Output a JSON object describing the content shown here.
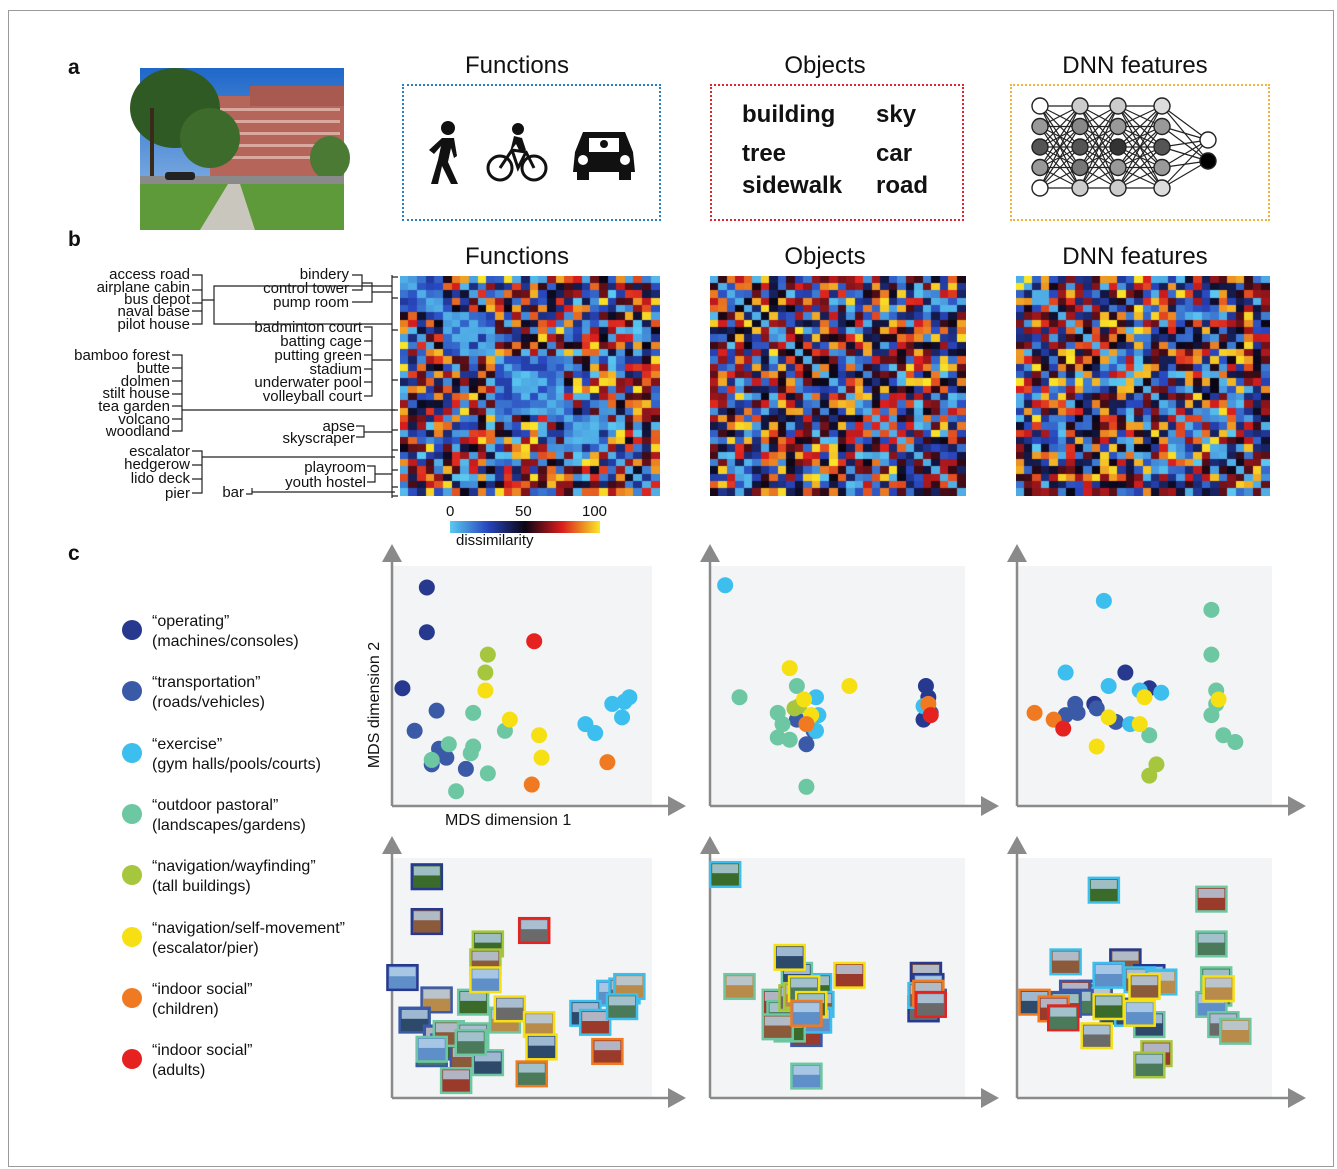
{
  "panel_labels": {
    "a": "a",
    "b": "b",
    "c": "c"
  },
  "columns": {
    "functions": "Functions",
    "objects": "Objects",
    "dnn": "DNN features"
  },
  "colors": {
    "functions_box": "#2a7fbf",
    "objects_box": "#e0262b",
    "dnn_box": "#f0b43c"
  },
  "function_icons": [
    "walking-person-icon",
    "cyclist-icon",
    "car-icon"
  ],
  "object_words": [
    "building",
    "sky",
    "tree",
    "car",
    "sidewalk",
    "road"
  ],
  "dendrogram_left": [
    "access road",
    "airplane cabin",
    "bus depot",
    "naval base",
    "pilot house",
    "bamboo forest",
    "butte",
    "dolmen",
    "stilt house",
    "tea garden",
    "volcano",
    "woodland",
    "escalator",
    "hedgerow",
    "lido deck",
    "pier"
  ],
  "dendrogram_right": [
    "bindery",
    "control tower",
    "pump room",
    "badminton court",
    "batting cage",
    "putting green",
    "stadium",
    "underwater pool",
    "volleyball court",
    "apse",
    "skyscraper",
    "playroom",
    "youth hostel",
    "bar"
  ],
  "colorbar": {
    "ticks": [
      "0",
      "50",
      "100"
    ],
    "label": "dissimilarity"
  },
  "mds": {
    "xlabel": "MDS dimension 1",
    "ylabel": "MDS dimension 2"
  },
  "legend": [
    {
      "title": "“operating”",
      "sub": "(machines/consoles)",
      "color": "#27398f"
    },
    {
      "title": "“transportation”",
      "sub": "(roads/vehicles)",
      "color": "#3a5aa8"
    },
    {
      "title": "“exercise”",
      "sub": "(gym halls/pools/courts)",
      "color": "#3cbfee"
    },
    {
      "title": "“outdoor pastoral”",
      "sub": "(landscapes/gardens)",
      "color": "#6cc7a2"
    },
    {
      "title": "“navigation/wayfinding”",
      "sub": "(tall buildings)",
      "color": "#a6c63e"
    },
    {
      "title": "“navigation/self-movement”",
      "sub": "(escalator/pier)",
      "color": "#f6df12"
    },
    {
      "title": "“indoor social”",
      "sub": "(children)",
      "color": "#f07a22"
    },
    {
      "title": "“indoor social”",
      "sub": "(adults)",
      "color": "#e5221f"
    }
  ],
  "chart_data": [
    {
      "type": "scatter",
      "name": "Functions",
      "points": [
        [
          0.11,
          0.94,
          0
        ],
        [
          0.11,
          0.74,
          0
        ],
        [
          0.01,
          0.49,
          0
        ],
        [
          0.55,
          0.7,
          7
        ],
        [
          0.15,
          0.39,
          1
        ],
        [
          0.06,
          0.3,
          1
        ],
        [
          0.16,
          0.22,
          1
        ],
        [
          0.13,
          0.15,
          1
        ],
        [
          0.19,
          0.18,
          1
        ],
        [
          0.27,
          0.13,
          1
        ],
        [
          0.87,
          0.42,
          2
        ],
        [
          0.92,
          0.43,
          2
        ],
        [
          0.94,
          0.45,
          2
        ],
        [
          0.76,
          0.33,
          2
        ],
        [
          0.8,
          0.29,
          2
        ],
        [
          0.91,
          0.36,
          2
        ],
        [
          0.3,
          0.38,
          3
        ],
        [
          0.2,
          0.24,
          3
        ],
        [
          0.13,
          0.17,
          3
        ],
        [
          0.3,
          0.23,
          3
        ],
        [
          0.43,
          0.3,
          3
        ],
        [
          0.36,
          0.11,
          3
        ],
        [
          0.23,
          0.03,
          3
        ],
        [
          0.29,
          0.2,
          3
        ],
        [
          0.36,
          0.64,
          4
        ],
        [
          0.35,
          0.56,
          4
        ],
        [
          0.35,
          0.48,
          5
        ],
        [
          0.45,
          0.35,
          5
        ],
        [
          0.57,
          0.28,
          5
        ],
        [
          0.58,
          0.18,
          5
        ],
        [
          0.85,
          0.16,
          6
        ],
        [
          0.54,
          0.06,
          6
        ]
      ]
    },
    {
      "type": "scatter",
      "name": "Objects",
      "points": [
        [
          0.03,
          0.95,
          2
        ],
        [
          0.87,
          0.5,
          0
        ],
        [
          0.88,
          0.45,
          0
        ],
        [
          0.86,
          0.35,
          0
        ],
        [
          0.33,
          0.35,
          1
        ],
        [
          0.4,
          0.3,
          1
        ],
        [
          0.37,
          0.24,
          1
        ],
        [
          0.89,
          0.38,
          1
        ],
        [
          0.41,
          0.45,
          2
        ],
        [
          0.42,
          0.37,
          2
        ],
        [
          0.41,
          0.3,
          2
        ],
        [
          0.86,
          0.41,
          2
        ],
        [
          0.09,
          0.45,
          3
        ],
        [
          0.33,
          0.5,
          3
        ],
        [
          0.25,
          0.38,
          3
        ],
        [
          0.27,
          0.33,
          3
        ],
        [
          0.3,
          0.26,
          3
        ],
        [
          0.25,
          0.27,
          3
        ],
        [
          0.37,
          0.05,
          3
        ],
        [
          0.32,
          0.4,
          4
        ],
        [
          0.34,
          0.41,
          4
        ],
        [
          0.3,
          0.58,
          5
        ],
        [
          0.55,
          0.5,
          5
        ],
        [
          0.36,
          0.44,
          5
        ],
        [
          0.39,
          0.37,
          5
        ],
        [
          0.88,
          0.42,
          6
        ],
        [
          0.37,
          0.33,
          6
        ],
        [
          0.89,
          0.37,
          7
        ]
      ]
    },
    {
      "type": "scatter",
      "name": "DNN features",
      "points": [
        [
          0.33,
          0.88,
          2
        ],
        [
          0.42,
          0.56,
          0
        ],
        [
          0.52,
          0.49,
          0
        ],
        [
          0.29,
          0.42,
          0
        ],
        [
          0.3,
          0.4,
          1
        ],
        [
          0.38,
          0.34,
          1
        ],
        [
          0.21,
          0.42,
          1
        ],
        [
          0.22,
          0.38,
          1
        ],
        [
          0.17,
          0.37,
          1
        ],
        [
          0.17,
          0.56,
          2
        ],
        [
          0.35,
          0.5,
          2
        ],
        [
          0.48,
          0.48,
          2
        ],
        [
          0.57,
          0.47,
          2
        ],
        [
          0.44,
          0.33,
          2
        ],
        [
          0.78,
          0.84,
          3
        ],
        [
          0.78,
          0.64,
          3
        ],
        [
          0.8,
          0.48,
          3
        ],
        [
          0.8,
          0.42,
          3
        ],
        [
          0.78,
          0.37,
          3
        ],
        [
          0.83,
          0.28,
          3
        ],
        [
          0.88,
          0.25,
          3
        ],
        [
          0.52,
          0.28,
          3
        ],
        [
          0.55,
          0.15,
          4
        ],
        [
          0.52,
          0.1,
          4
        ],
        [
          0.35,
          0.36,
          5
        ],
        [
          0.5,
          0.45,
          5
        ],
        [
          0.48,
          0.33,
          5
        ],
        [
          0.3,
          0.23,
          5
        ],
        [
          0.81,
          0.44,
          5
        ],
        [
          0.04,
          0.38,
          6
        ],
        [
          0.12,
          0.35,
          6
        ],
        [
          0.16,
          0.31,
          7
        ]
      ]
    }
  ]
}
